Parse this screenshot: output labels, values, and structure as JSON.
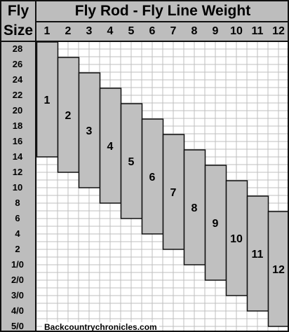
{
  "header": {
    "title": "Fly Rod - Fly Line Weight",
    "row_label_line1": "Fly",
    "row_label_line2": "Size"
  },
  "footer": {
    "credit": "Backcountrychronicles.com"
  },
  "chart_data": {
    "type": "range-bar",
    "title": "Fly Rod - Fly Line Weight",
    "xlabel": "Fly Line Weight",
    "ylabel": "Fly Size",
    "x_categories": [
      "1",
      "2",
      "3",
      "4",
      "5",
      "6",
      "7",
      "8",
      "9",
      "10",
      "11",
      "12"
    ],
    "y_ticks": [
      "28",
      "26",
      "24",
      "22",
      "20",
      "18",
      "16",
      "14",
      "12",
      "10",
      "8",
      "6",
      "4",
      "2",
      "1/0",
      "2/0",
      "3/0",
      "4/0",
      "5/0"
    ],
    "series": [
      {
        "x": "1",
        "label": "1",
        "from": "28",
        "to": "14"
      },
      {
        "x": "2",
        "label": "2",
        "from": "26",
        "to": "12"
      },
      {
        "x": "3",
        "label": "3",
        "from": "24",
        "to": "10"
      },
      {
        "x": "4",
        "label": "4",
        "from": "22",
        "to": "8"
      },
      {
        "x": "5",
        "label": "5",
        "from": "20",
        "to": "6"
      },
      {
        "x": "6",
        "label": "6",
        "from": "18",
        "to": "4"
      },
      {
        "x": "7",
        "label": "7",
        "from": "16",
        "to": "2"
      },
      {
        "x": "8",
        "label": "8",
        "from": "14",
        "to": "1/0"
      },
      {
        "x": "9",
        "label": "9",
        "from": "12",
        "to": "2/0"
      },
      {
        "x": "10",
        "label": "10",
        "from": "10",
        "to": "3/0"
      },
      {
        "x": "11",
        "label": "11",
        "from": "8",
        "to": "4/0"
      },
      {
        "x": "12",
        "label": "12",
        "from": "6",
        "to": "5/0"
      }
    ],
    "grid": true,
    "bar_color": "#c0c0c0",
    "header_color": "#bdbdbd"
  }
}
